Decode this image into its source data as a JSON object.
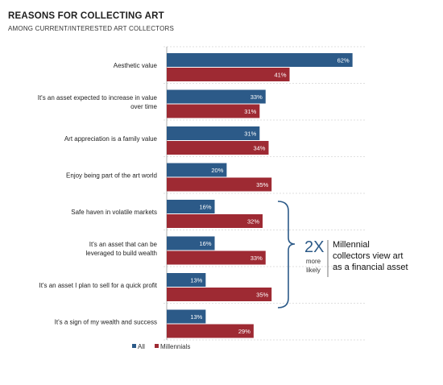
{
  "header": {
    "title": "REASONS FOR COLLECTING ART",
    "subtitle": "AMONG CURRENT/INTERESTED ART COLLECTORS"
  },
  "colors": {
    "all": "#2c5a88",
    "millennials": "#9e2a33",
    "grid": "#bfbfbf"
  },
  "chart_data": {
    "type": "bar",
    "orientation": "horizontal",
    "categories": [
      [
        "Aesthetic value"
      ],
      [
        "It's an asset expected to increase in value",
        "over time"
      ],
      [
        "Art appreciation is a family value"
      ],
      [
        "Enjoy being part of the art world"
      ],
      [
        "Safe haven in volatile markets"
      ],
      [
        "It's an asset that can be",
        "leveraged to build wealth"
      ],
      [
        "It's an asset I plan to sell for a quick profit"
      ],
      [
        "It's a sign of my wealth and success"
      ]
    ],
    "series": [
      {
        "name": "All",
        "values": [
          62,
          33,
          31,
          20,
          16,
          16,
          13,
          13
        ],
        "labels": [
          "62%",
          "33%",
          "31%",
          "20%",
          "16%",
          "16%",
          "13%",
          "13%"
        ]
      },
      {
        "name": "Millennials",
        "values": [
          41,
          31,
          34,
          35,
          32,
          33,
          35,
          29
        ],
        "labels": [
          "41%",
          "31%",
          "34%",
          "35%",
          "32%",
          "33%",
          "35%",
          "29%"
        ]
      }
    ],
    "legend": "bottom-left"
  },
  "callout": {
    "big": "2X",
    "small_line1": "more",
    "small_line2": "likely",
    "text_lines": [
      "Millennial",
      "collectors view art",
      "as a financial asset"
    ]
  }
}
